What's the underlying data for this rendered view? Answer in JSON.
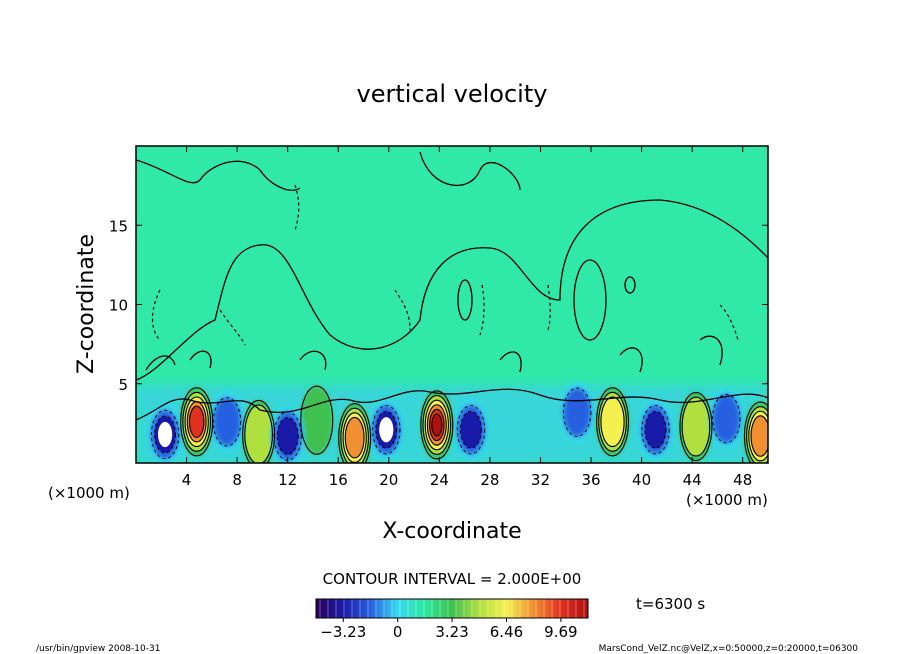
{
  "chart_data": {
    "type": "heatmap",
    "title": "vertical velocity",
    "xlabel": "X-coordinate",
    "ylabel": "Z-coordinate",
    "x_unit_left": "(×1000 m)",
    "x_unit_right": "(×1000 m)",
    "xlim": [
      0,
      50
    ],
    "ylim": [
      0,
      20
    ],
    "xticks": [
      4,
      8,
      12,
      16,
      20,
      24,
      28,
      32,
      36,
      40,
      44,
      48
    ],
    "yticks": [
      5,
      10,
      15
    ],
    "grid": false,
    "contour_interval_text": "CONTOUR INTERVAL = 2.000E+00",
    "colorbar": {
      "min": -4.85,
      "max": 11.3,
      "ticks": [
        "−3.23",
        "0",
        "3.23",
        "6.46",
        "9.69"
      ],
      "tick_values": [
        -3.23,
        0,
        3.23,
        6.46,
        9.69
      ]
    },
    "time_label": "t=6300 s",
    "updrafts": [
      {
        "x": 4.8,
        "z": 2.6,
        "w": 8.5
      },
      {
        "x": 17.3,
        "z": 1.6,
        "w": 7.0
      },
      {
        "x": 23.8,
        "z": 2.4,
        "w": 9.5
      },
      {
        "x": 37.7,
        "z": 2.6,
        "w": 5.0
      },
      {
        "x": 44.3,
        "z": 2.3,
        "w": 3.0
      },
      {
        "x": 49.4,
        "z": 1.7,
        "w": 6.5
      },
      {
        "x": 9.7,
        "z": 1.8,
        "w": 2.5
      },
      {
        "x": 14.3,
        "z": 2.7,
        "w": 2.0
      }
    ],
    "downdrafts": [
      {
        "x": 2.3,
        "z": 1.8,
        "w": -4.8
      },
      {
        "x": 12.0,
        "z": 1.7,
        "w": -3.5
      },
      {
        "x": 19.8,
        "z": 2.1,
        "w": -4.8
      },
      {
        "x": 26.5,
        "z": 2.1,
        "w": -4.0
      },
      {
        "x": 34.9,
        "z": 3.2,
        "w": -2.5
      },
      {
        "x": 41.1,
        "z": 2.1,
        "w": -3.8
      },
      {
        "x": 46.7,
        "z": 2.8,
        "w": -2.5
      },
      {
        "x": 7.2,
        "z": 2.6,
        "w": -2.0
      }
    ]
  },
  "footer": {
    "program": "/usr/bin/gpview   2008-10-31",
    "source": "MarsCond_VelZ.nc@VelZ,x=0:50000,z=0:20000,t=06300"
  }
}
